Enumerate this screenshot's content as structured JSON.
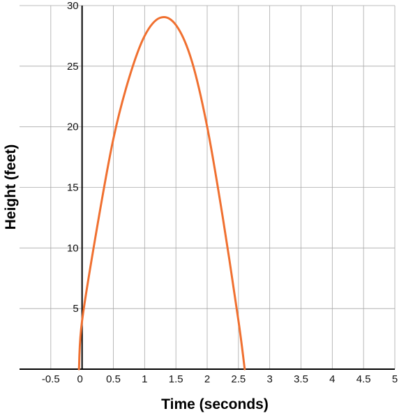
{
  "chart_data": {
    "type": "line",
    "title": "",
    "xlabel": "Time (seconds)",
    "ylabel": "Height (feet)",
    "xlim": [
      -1,
      5
    ],
    "ylim": [
      0,
      30
    ],
    "x_ticks": [
      "-0.5",
      "0",
      "0.5",
      "1",
      "1.5",
      "2",
      "2.5",
      "3",
      "3.5",
      "4",
      "4.5",
      "5"
    ],
    "y_ticks": [
      "5",
      "10",
      "15",
      "20",
      "25",
      "30"
    ],
    "grid": true,
    "colors": {
      "curve": "#f07030",
      "grid": "#a8a8a8",
      "axis": "#000000"
    },
    "series": [
      {
        "values": [
          {
            "x": -0.05,
            "y": 0
          },
          {
            "x": 0,
            "y": 4
          },
          {
            "x": 0.25,
            "y": 12
          },
          {
            "x": 0.5,
            "y": 19
          },
          {
            "x": 0.75,
            "y": 24
          },
          {
            "x": 1,
            "y": 27.5
          },
          {
            "x": 1.25,
            "y": 29
          },
          {
            "x": 1.5,
            "y": 28.4
          },
          {
            "x": 1.75,
            "y": 25.5
          },
          {
            "x": 2,
            "y": 20
          },
          {
            "x": 2.25,
            "y": 12.5
          },
          {
            "x": 2.5,
            "y": 4
          },
          {
            "x": 2.6,
            "y": 0
          }
        ]
      }
    ]
  }
}
